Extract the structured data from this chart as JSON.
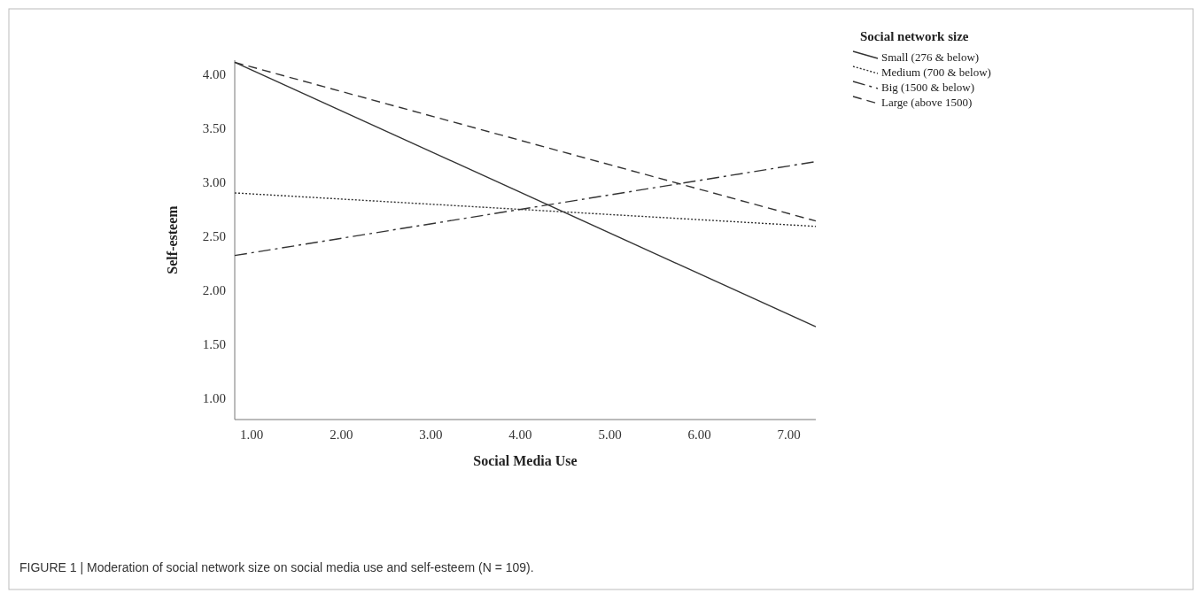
{
  "chart_data": {
    "type": "line",
    "xlabel": "Social Media Use",
    "ylabel": "Self-esteem",
    "legend_title": "Social network size",
    "legend": "top right",
    "grid": false,
    "xlim": [
      0.81,
      7.3
    ],
    "xticks": [
      {
        "value": 1,
        "label": "1.00"
      },
      {
        "value": 2,
        "label": "2.00"
      },
      {
        "value": 3,
        "label": "3.00"
      },
      {
        "value": 4,
        "label": "4.00"
      },
      {
        "value": 5,
        "label": "5.00"
      },
      {
        "value": 6,
        "label": "6.00"
      },
      {
        "value": 7,
        "label": "7.00"
      }
    ],
    "ylim": [
      0.8,
      4.13
    ],
    "yticks": [
      {
        "value": 1,
        "label": "1.00"
      },
      {
        "value": 1.5,
        "label": "1.50"
      },
      {
        "value": 2,
        "label": "2.00"
      },
      {
        "value": 2.5,
        "label": "2.50"
      },
      {
        "value": 3,
        "label": "3.00"
      },
      {
        "value": 3.5,
        "label": "3.50"
      },
      {
        "value": 4,
        "label": "4.00"
      }
    ],
    "x": [
      0.81,
      7.3
    ],
    "series": [
      {
        "name": "Small (276 & below)",
        "color": "#333333",
        "line_style": "solid",
        "values": [
          4.11,
          1.66
        ]
      },
      {
        "name": "Medium (700 & below)",
        "color": "#333333",
        "line_style": "dotted",
        "values": [
          2.9,
          2.59
        ]
      },
      {
        "name": "Big (1500 & below)",
        "color": "#333333",
        "line_style": "dashdot",
        "values": [
          2.32,
          3.19
        ]
      },
      {
        "name": "Large (above 1500)",
        "color": "#333333",
        "line_style": "dashed",
        "values": [
          4.11,
          2.64
        ]
      }
    ],
    "annotations": [
      "FIGURE 1 | Moderation of social network size on social media use and self-esteem (N = 109)."
    ]
  }
}
